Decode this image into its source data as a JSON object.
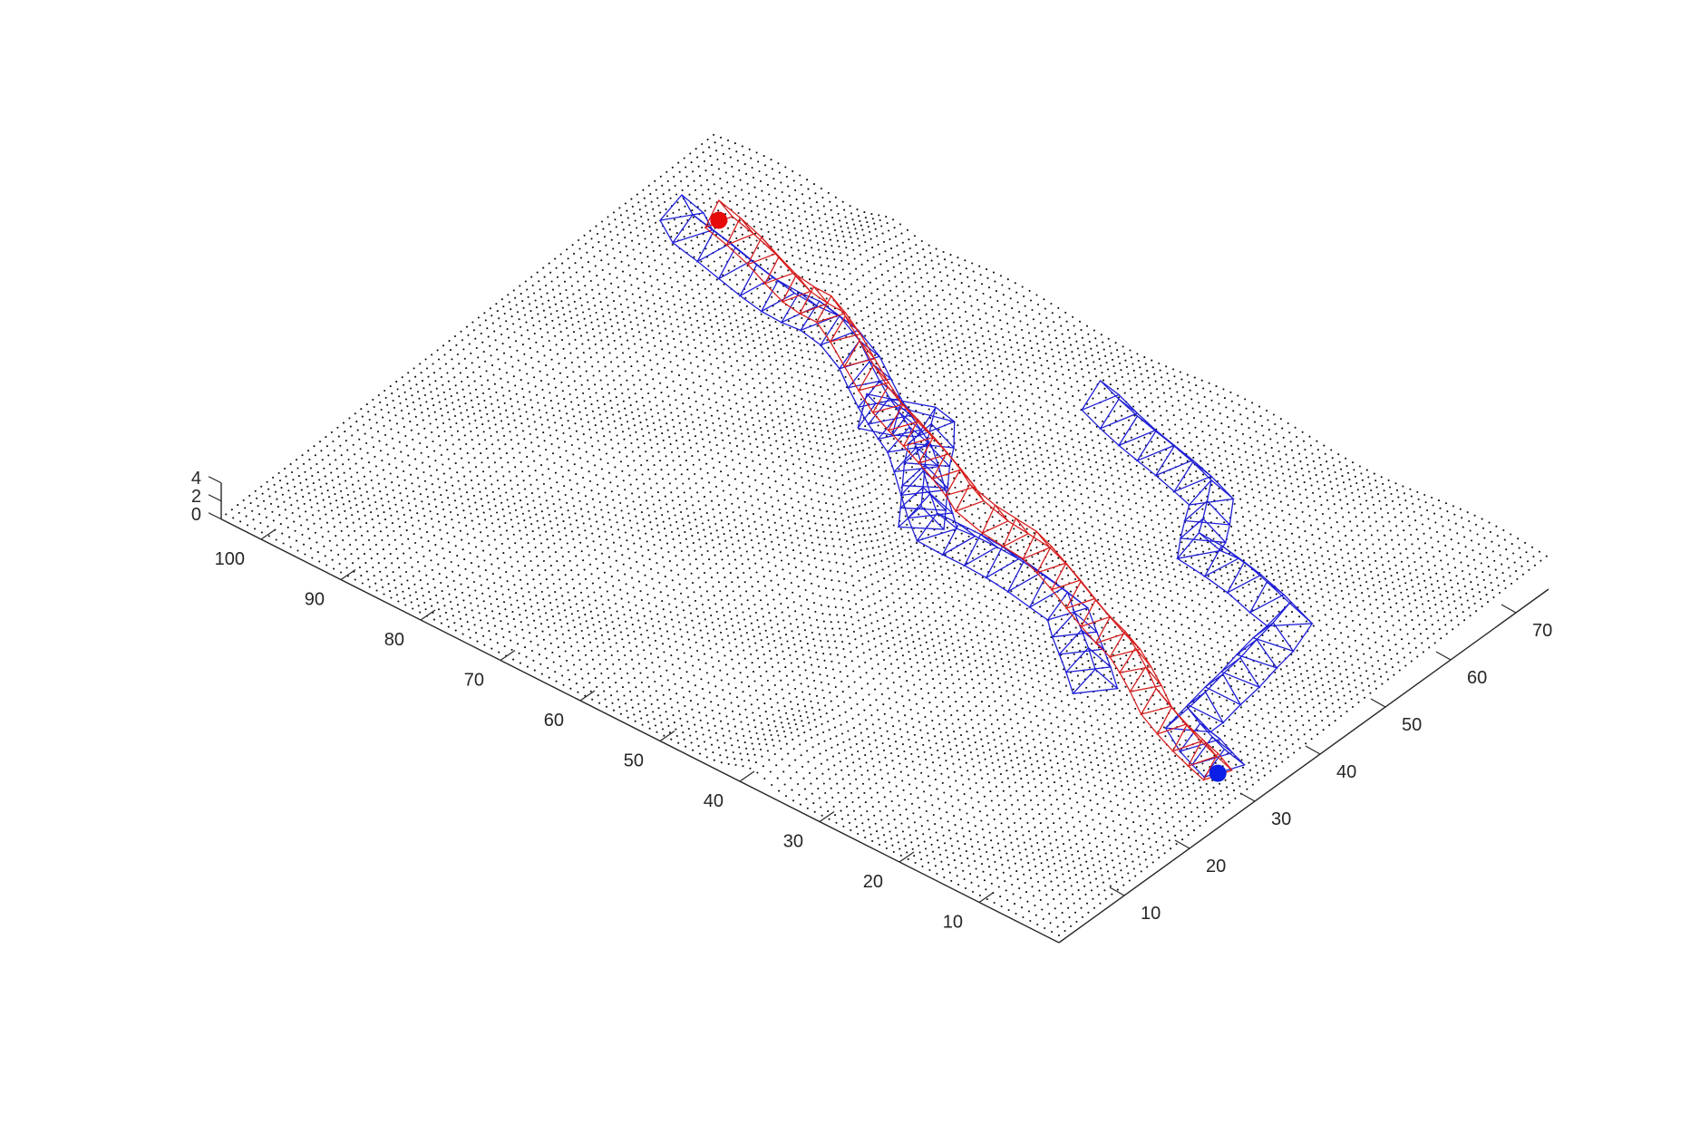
{
  "chart_data": {
    "type": "scatter",
    "title": "",
    "xlabel": "",
    "ylabel": "",
    "zlabel": "",
    "grid": false,
    "x_axis": {
      "range": [
        0,
        75
      ],
      "ticks": [
        10,
        20,
        30,
        40,
        50,
        60,
        70
      ]
    },
    "y_axis": {
      "range": [
        0,
        105
      ],
      "ticks": [
        10,
        20,
        30,
        40,
        50,
        60,
        70,
        80,
        90,
        100
      ]
    },
    "z_axis": {
      "range": [
        0,
        4
      ],
      "ticks": [
        0,
        2,
        4
      ]
    },
    "series": [
      {
        "kind": "surface-point-cloud",
        "color": "#000000",
        "description_values": "terrain height map approx 0-4 over x 0-75, y 0-105 with a curved ridge"
      },
      {
        "kind": "path-envelope",
        "color": "#1f1fd6",
        "x": [
          29,
          32,
          40,
          50,
          52,
          60,
          65
        ],
        "y": [
          3,
          10,
          10,
          12,
          25,
          30,
          48
        ]
      },
      {
        "kind": "path-envelope",
        "color": "#1f1fd6",
        "x": [
          30,
          38,
          40,
          48,
          55,
          58,
          60,
          62
        ],
        "y": [
          20,
          30,
          48,
          58,
          70,
          80,
          95,
          98
        ]
      },
      {
        "kind": "path-envelope",
        "color": "#1f1fd6",
        "x": [
          40,
          47,
          52,
          50
        ],
        "y": [
          50,
          55,
          58,
          65
        ]
      },
      {
        "kind": "path-ridge",
        "color": "#d62020",
        "x": [
          28,
          32,
          37,
          40,
          43,
          44,
          45,
          46,
          48,
          52,
          58,
          62,
          64
        ],
        "y": [
          3,
          14,
          22,
          30,
          38,
          44,
          48,
          50,
          55,
          64,
          76,
          88,
          95
        ]
      }
    ],
    "markers": [
      {
        "name": "start",
        "color": "#0a1ee6",
        "x": 28,
        "y": 3,
        "z": 1
      },
      {
        "name": "goal",
        "color": "#e60a0a",
        "x": 64,
        "y": 95,
        "z": 1
      }
    ]
  }
}
